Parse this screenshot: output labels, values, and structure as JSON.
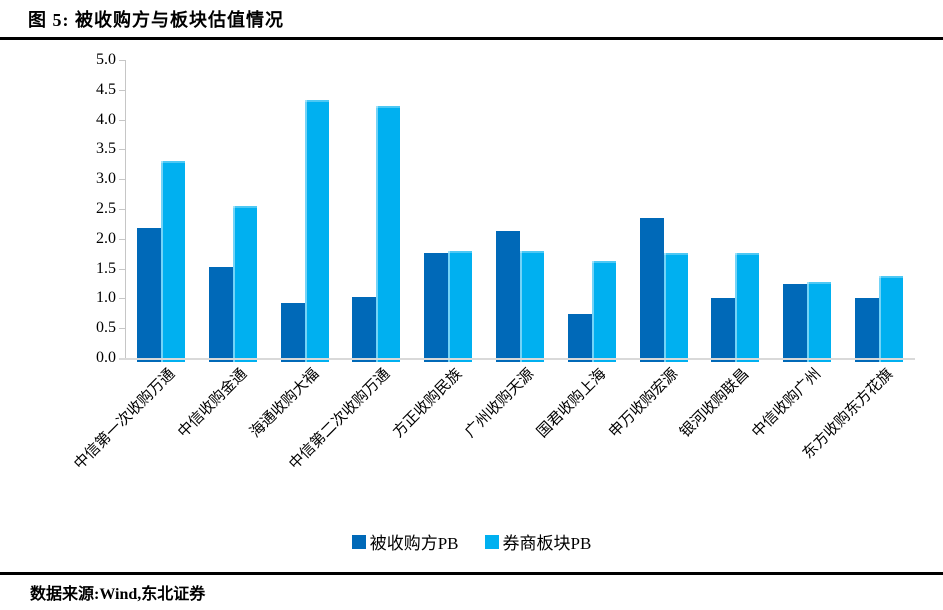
{
  "header": {
    "title": "图 5: 被收购方与板块估值情况"
  },
  "footer": {
    "source": "数据来源:Wind,东北证券"
  },
  "chart_data": {
    "type": "bar",
    "title": "被收购方与板块估值情况",
    "categories": [
      "中信第一次收购万通",
      "中信收购金通",
      "海通收购大福",
      "中信第二次收购万通",
      "方正收购民族",
      "广州收购天源",
      "国君收购上海",
      "申万收购宏源",
      "银河收购联昌",
      "中信收购广州",
      "东方收购东方花旗"
    ],
    "series": [
      {
        "name": "被收购方PB",
        "color": "#0069B8",
        "values": [
          2.18,
          1.52,
          0.93,
          1.02,
          1.77,
          2.13,
          0.74,
          2.35,
          1.01,
          1.25,
          1.01
        ]
      },
      {
        "name": "券商板块PB",
        "color": "#00B0F0",
        "values": [
          3.3,
          2.55,
          4.33,
          4.22,
          1.79,
          1.79,
          1.63,
          1.76,
          1.77,
          1.27,
          1.38
        ]
      }
    ],
    "ylim": [
      0,
      5
    ],
    "ytick_step": 0.5,
    "ytick_format_decimals": 1,
    "grid": false,
    "legend_position": "bottom",
    "xlabel": "",
    "ylabel": ""
  },
  "colors": {
    "axis": "#C6C6C6",
    "baseline": "#D9D9D9",
    "rule": "#000000"
  }
}
